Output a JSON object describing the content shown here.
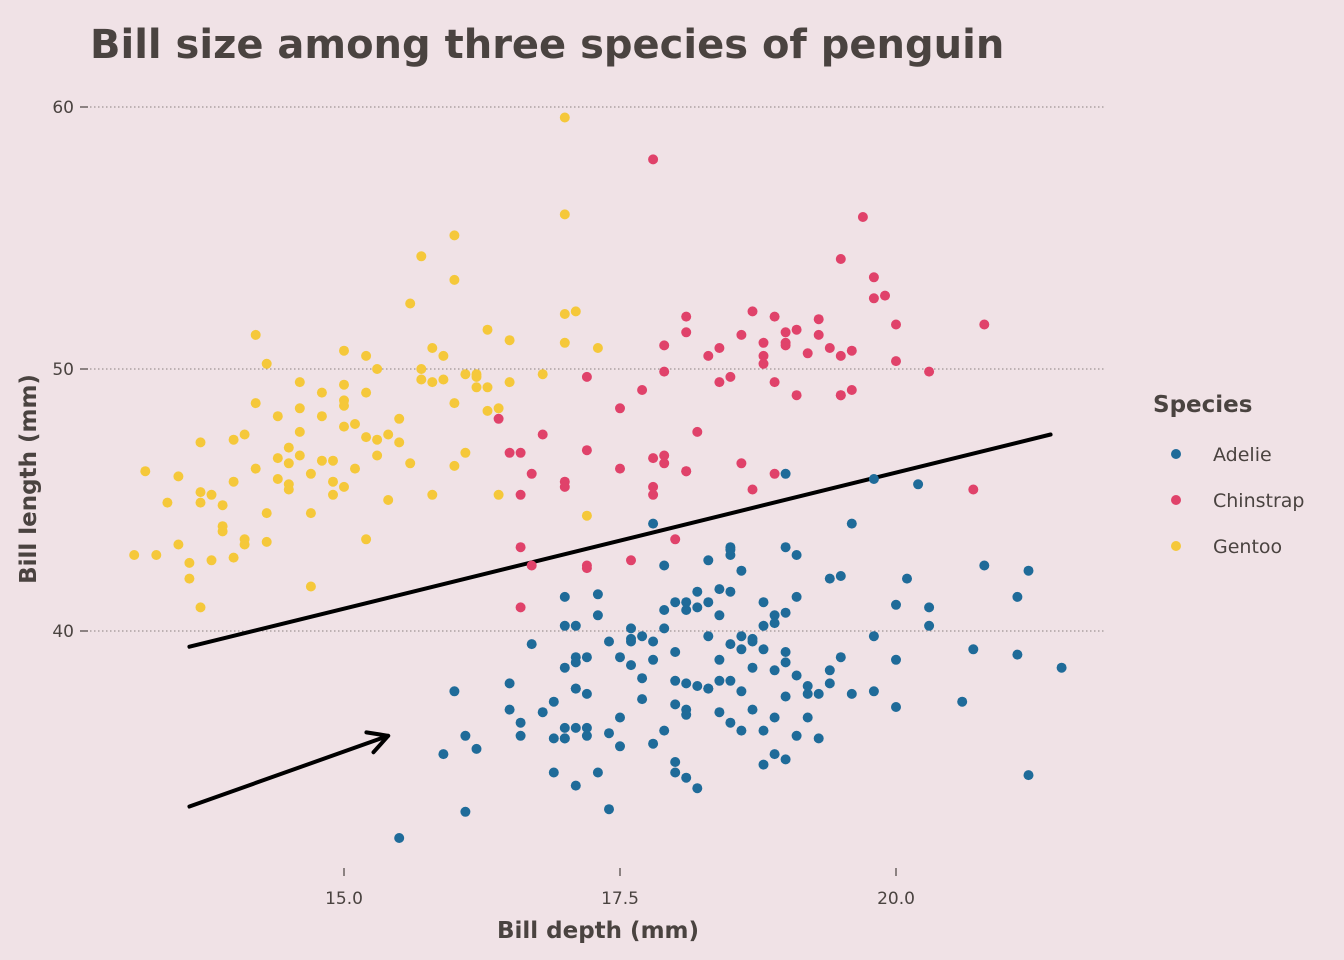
{
  "chart_data": {
    "type": "scatter",
    "title": "Bill size among three species of penguin",
    "xlabel": "Bill depth (mm)",
    "ylabel": "Bill length (mm)",
    "xlim": [
      13.0,
      21.7
    ],
    "ylim": [
      31.0,
      61.5
    ],
    "xticks": [
      15.0,
      17.5,
      20.0
    ],
    "xtick_labels": [
      "15.0",
      "17.5",
      "20.0"
    ],
    "yticks": [
      40,
      50,
      60
    ],
    "ytick_labels": [
      "40",
      "50",
      "60"
    ],
    "grid": "horizontal dotted lines at y ticks",
    "legend": {
      "title": "Species",
      "placement": "right",
      "entries": [
        "Adelie",
        "Chinstrap",
        "Gentoo"
      ]
    },
    "annotations": [
      {
        "type": "line",
        "from": [
          13.6,
          39.4
        ],
        "to": [
          21.4,
          47.5
        ]
      },
      {
        "type": "arrow",
        "from": [
          13.6,
          33.3
        ],
        "to": [
          15.4,
          36.0
        ]
      }
    ],
    "series": [
      {
        "name": "Adelie",
        "color": "#1f6b99",
        "x": [
          15.5,
          16.1,
          15.9,
          16.1,
          16.2,
          16.0,
          16.6,
          16.5,
          16.7,
          16.6,
          16.5,
          16.9,
          16.8,
          17.0,
          17.0,
          16.9,
          17.0,
          17.1,
          17.2,
          17.1,
          17.1,
          17.1,
          17.2,
          17.3,
          17.4,
          17.0,
          17.1,
          17.1,
          17.2,
          17.3,
          17.0,
          17.1,
          17.2,
          17.4,
          17.5,
          17.6,
          17.5,
          17.6,
          17.7,
          17.6,
          17.7,
          17.8,
          17.9,
          17.8,
          17.8,
          17.9,
          17.9,
          18.0,
          18.0,
          18.0,
          18.0,
          18.1,
          18.0,
          18.1,
          18.1,
          18.2,
          18.1,
          18.2,
          18.1,
          18.3,
          18.3,
          18.4,
          18.3,
          18.4,
          18.5,
          18.5,
          18.5,
          18.5,
          18.4,
          18.6,
          18.6,
          18.6,
          18.7,
          18.7,
          18.8,
          18.8,
          18.8,
          18.9,
          18.9,
          19.0,
          19.0,
          19.0,
          19.1,
          19.0,
          19.1,
          19.1,
          19.2,
          19.2,
          19.2,
          19.3,
          19.4,
          19.4,
          19.5,
          19.5,
          19.6,
          19.8,
          19.8,
          20.0,
          20.0,
          20.1,
          20.3,
          20.2,
          20.3,
          20.6,
          20.7,
          20.8,
          21.1,
          21.1,
          21.2,
          21.2,
          21.5,
          19.0,
          18.5,
          18.2,
          18.5,
          18.7,
          18.9,
          18.0,
          17.6,
          17.8,
          17.9,
          18.3,
          18.5,
          18.8,
          19.0,
          19.1,
          18.6,
          18.4,
          18.7,
          18.9,
          17.7,
          17.5,
          18.1,
          18.2,
          18.8,
          19.0,
          19.3,
          19.4,
          19.6,
          19.8,
          18.9,
          20.0,
          17.4,
          17.3,
          16.9,
          17.0,
          18.3,
          18.6,
          18.4
        ],
        "y": [
          32.1,
          36.0,
          35.3,
          33.1,
          35.5,
          37.7,
          36.0,
          37.0,
          39.5,
          36.5,
          38.0,
          37.3,
          36.9,
          36.3,
          38.6,
          35.9,
          40.2,
          37.8,
          36.0,
          39.0,
          34.1,
          36.3,
          37.6,
          40.6,
          39.6,
          35.9,
          40.2,
          37.8,
          36.3,
          34.6,
          35.9,
          38.8,
          39.0,
          36.1,
          35.6,
          40.1,
          39.0,
          38.7,
          39.8,
          39.6,
          37.4,
          38.9,
          36.2,
          35.7,
          39.6,
          42.5,
          40.1,
          35.0,
          37.2,
          38.1,
          39.2,
          40.8,
          34.6,
          41.1,
          36.8,
          41.5,
          34.4,
          40.9,
          38.0,
          42.7,
          37.8,
          40.6,
          41.1,
          38.9,
          43.2,
          41.5,
          39.5,
          42.9,
          41.6,
          37.7,
          39.3,
          42.3,
          38.6,
          39.6,
          39.3,
          41.1,
          40.2,
          35.3,
          36.7,
          43.2,
          39.2,
          40.7,
          38.3,
          37.5,
          36.0,
          42.9,
          37.9,
          36.7,
          37.6,
          35.9,
          42.0,
          38.5,
          39.0,
          42.1,
          44.1,
          37.7,
          45.8,
          41.0,
          38.9,
          42.0,
          40.2,
          45.6,
          40.9,
          37.3,
          39.3,
          42.5,
          41.3,
          39.1,
          34.5,
          42.3,
          38.6,
          46.0,
          38.1,
          37.9,
          43.1,
          37.0,
          40.6,
          41.1,
          39.7,
          44.1,
          40.8,
          37.8,
          36.5,
          36.2,
          38.8,
          41.3,
          39.8,
          36.9,
          39.7,
          40.3,
          38.2,
          36.7,
          37.0,
          34.0,
          34.9,
          35.1,
          37.6,
          38.0,
          37.6,
          39.8,
          38.5,
          37.1,
          33.2,
          41.4,
          34.6,
          41.3,
          39.8,
          36.2,
          38.1
        ],
        "note": "read from dots; approximate"
      },
      {
        "name": "Chinstrap",
        "color": "#e0426a",
        "x": [
          16.4,
          16.5,
          16.6,
          16.6,
          16.6,
          16.7,
          16.8,
          17.0,
          17.0,
          17.2,
          17.2,
          17.2,
          17.5,
          17.5,
          17.6,
          17.7,
          17.8,
          17.8,
          17.8,
          17.9,
          17.9,
          17.9,
          17.9,
          18.0,
          18.1,
          18.1,
          18.1,
          18.2,
          18.3,
          18.4,
          18.4,
          18.5,
          18.6,
          18.6,
          18.7,
          18.7,
          18.8,
          18.8,
          18.8,
          18.9,
          18.9,
          19.0,
          19.0,
          19.0,
          19.1,
          19.1,
          19.2,
          19.3,
          19.3,
          19.4,
          19.5,
          19.5,
          19.5,
          19.6,
          19.6,
          19.7,
          19.8,
          19.8,
          19.9,
          20.0,
          20.0,
          20.3,
          20.7,
          20.8,
          17.2,
          16.7,
          16.6,
          18.1,
          18.9,
          17.8,
          19.5
        ],
        "y": [
          48.1,
          46.8,
          46.8,
          45.2,
          43.2,
          42.5,
          47.5,
          45.7,
          45.5,
          49.7,
          42.4,
          46.9,
          48.5,
          46.2,
          42.7,
          49.2,
          58.0,
          45.2,
          46.6,
          46.7,
          50.9,
          49.9,
          46.4,
          43.5,
          52.0,
          51.4,
          46.1,
          47.6,
          50.5,
          49.5,
          50.8,
          49.7,
          51.3,
          46.4,
          45.4,
          52.2,
          51.0,
          50.2,
          50.5,
          49.5,
          52.0,
          50.9,
          51.0,
          51.4,
          51.5,
          49.0,
          50.6,
          51.3,
          51.9,
          50.8,
          49.0,
          50.5,
          49.0,
          50.7,
          49.2,
          55.8,
          52.7,
          53.5,
          52.8,
          50.3,
          51.7,
          49.9,
          45.4,
          51.7,
          42.5,
          46.0,
          40.9,
          46.1,
          46.0,
          45.5,
          54.2
        ],
        "note": "read from dots; approximate"
      },
      {
        "name": "Gentoo",
        "color": "#f5c83a",
        "x": [
          13.1,
          13.2,
          13.4,
          13.5,
          13.6,
          13.7,
          13.7,
          13.8,
          13.9,
          14.0,
          14.1,
          14.2,
          14.2,
          14.3,
          14.4,
          14.4,
          14.5,
          14.5,
          14.6,
          14.6,
          14.7,
          14.7,
          14.8,
          14.9,
          15.0,
          15.0,
          15.0,
          15.1,
          15.2,
          15.2,
          15.3,
          15.3,
          15.4,
          15.5,
          15.6,
          15.7,
          15.7,
          15.8,
          15.8,
          15.9,
          16.0,
          16.0,
          16.1,
          16.1,
          16.2,
          16.3,
          16.3,
          16.4,
          16.5,
          16.8,
          17.0,
          17.0,
          17.0,
          17.1,
          17.2,
          17.3,
          14.3,
          14.8,
          15.0,
          15.3,
          15.6,
          15.9,
          16.2,
          14.0,
          14.5,
          15.2,
          13.8,
          14.1,
          14.6,
          14.9,
          15.4,
          13.9,
          14.2,
          14.7,
          15.0,
          15.5,
          13.5,
          14.3,
          14.8,
          15.1,
          16.0,
          16.4,
          13.7,
          14.4,
          15.7,
          16.3,
          13.6,
          14.0,
          14.9,
          16.5,
          13.3,
          14.6,
          15.8,
          13.7,
          14.1,
          15.0,
          16.2,
          17.0,
          14.5,
          13.9,
          15.2,
          16.0
        ],
        "y": [
          42.9,
          46.1,
          44.9,
          43.3,
          42.0,
          47.2,
          44.9,
          45.2,
          44.0,
          45.7,
          47.5,
          48.7,
          46.2,
          50.2,
          46.6,
          48.2,
          45.4,
          47.0,
          48.5,
          46.7,
          41.7,
          44.5,
          49.1,
          46.5,
          50.7,
          47.8,
          45.5,
          46.2,
          50.5,
          49.1,
          47.3,
          46.7,
          45.0,
          47.2,
          46.4,
          54.3,
          49.6,
          49.5,
          45.2,
          50.5,
          55.1,
          48.7,
          46.8,
          49.8,
          49.8,
          51.5,
          48.4,
          45.2,
          51.1,
          49.8,
          52.1,
          55.9,
          59.6,
          52.2,
          44.4,
          50.8,
          44.5,
          46.5,
          49.4,
          50.0,
          52.5,
          49.6,
          49.3,
          47.3,
          45.6,
          43.5,
          42.7,
          43.5,
          47.6,
          45.2,
          47.5,
          43.8,
          51.3,
          46.0,
          48.8,
          48.1,
          45.9,
          43.4,
          48.2,
          47.9,
          46.3,
          48.5,
          40.9,
          45.8,
          50.0,
          49.3,
          42.6,
          42.8,
          45.7,
          49.5,
          42.9,
          49.5,
          50.8,
          45.3,
          43.3,
          48.6,
          49.7,
          51.0,
          46.4,
          44.8,
          47.4,
          53.4
        ],
        "note": "read from dots; approximate"
      }
    ]
  }
}
